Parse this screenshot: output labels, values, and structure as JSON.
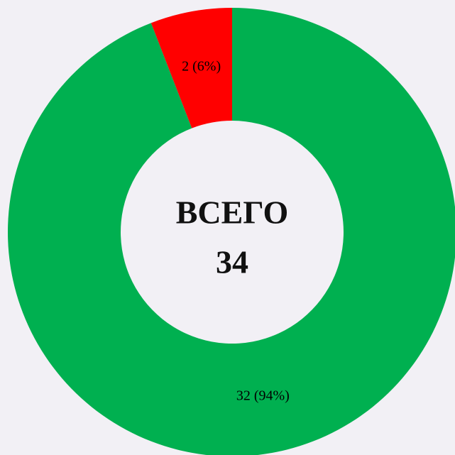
{
  "chart_data": {
    "type": "donut",
    "values": [
      32,
      2
    ],
    "value_labels": [
      "32 (94%)",
      "2 (6%)"
    ],
    "colors": [
      "#00b050",
      "#ff0000"
    ],
    "center_title": "ВСЕГО",
    "center_value": 34
  }
}
